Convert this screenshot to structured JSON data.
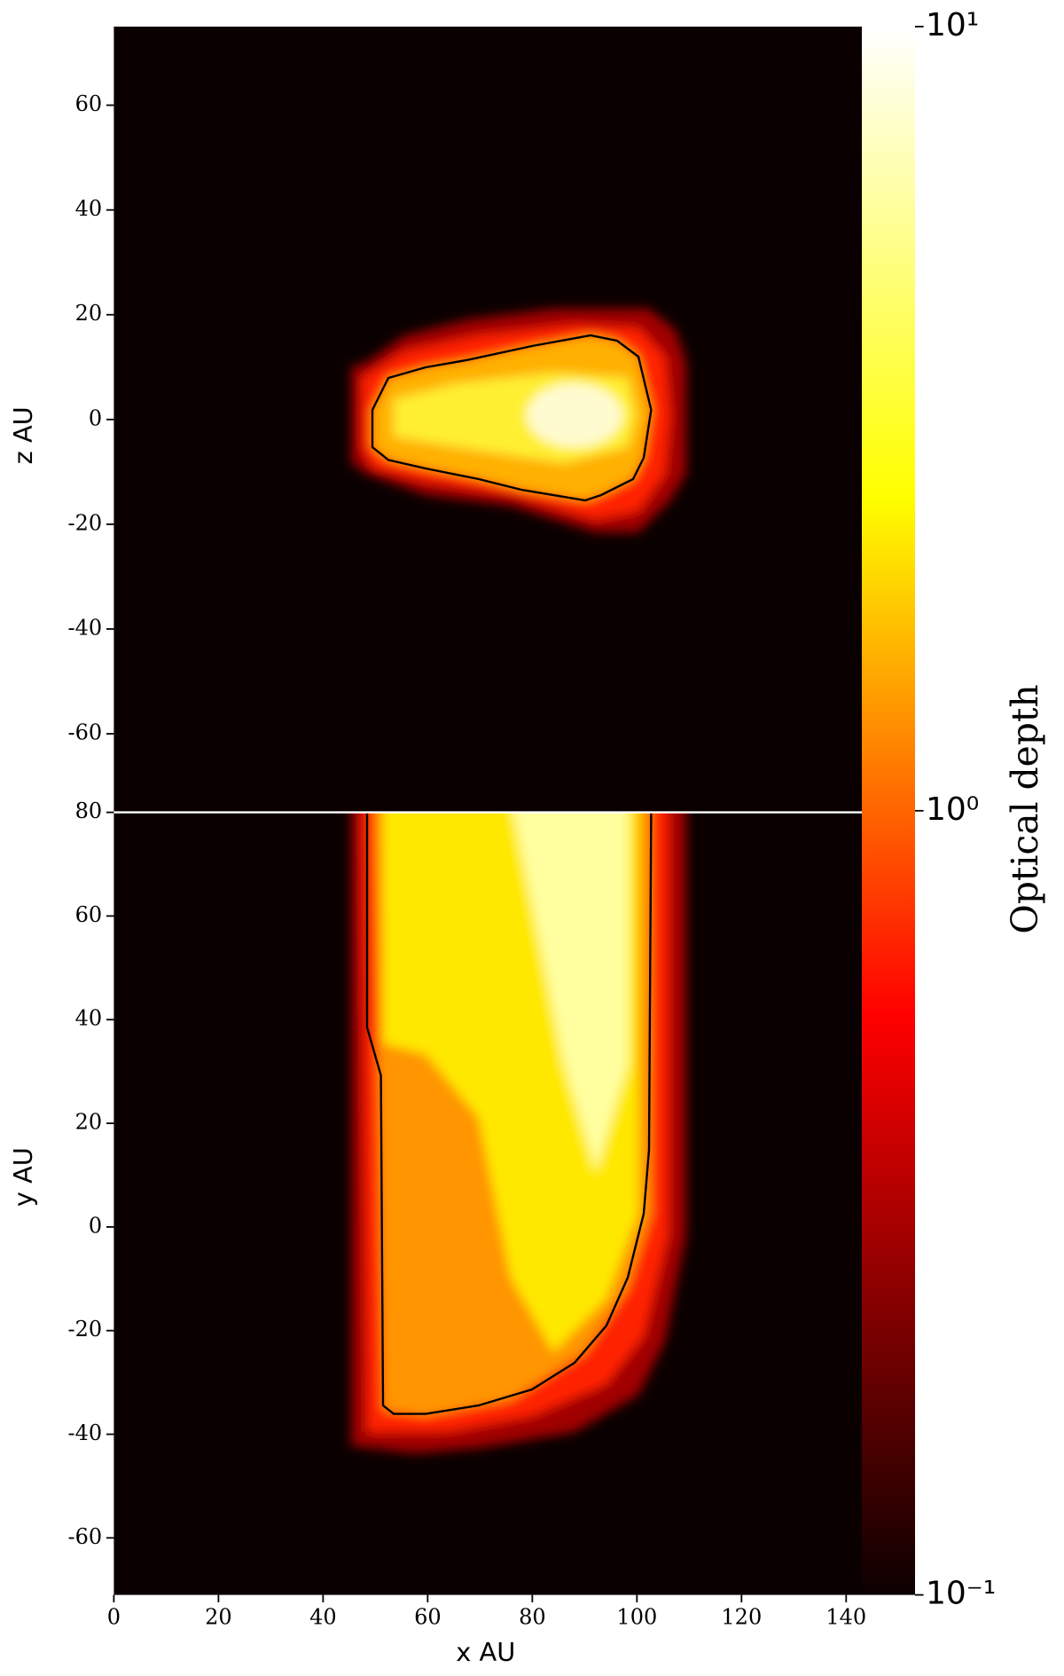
{
  "chart_data": [
    {
      "type": "heatmap",
      "ylabel": "z AU",
      "xlim": [
        0,
        143
      ],
      "ylim": [
        -75,
        75
      ],
      "yticks": [
        -60,
        -40,
        -20,
        0,
        20,
        40,
        60
      ]
    },
    {
      "type": "heatmap",
      "xlabel": "x AU",
      "ylabel": "y AU",
      "xlim": [
        0,
        143
      ],
      "ylim": [
        -71,
        80
      ],
      "xticks": [
        0,
        20,
        40,
        60,
        80,
        100,
        120,
        140
      ],
      "yticks": [
        -60,
        -40,
        -20,
        0,
        20,
        40,
        60,
        80
      ]
    },
    {
      "type": "colorbar",
      "label": "Optical depth",
      "log": true,
      "lim": [
        0.1,
        10
      ],
      "ticks": [
        {
          "value": 10,
          "label": "10¹"
        },
        {
          "value": 1,
          "label": "10⁰"
        },
        {
          "value": 0.1,
          "label": "10⁻¹"
        }
      ]
    }
  ]
}
